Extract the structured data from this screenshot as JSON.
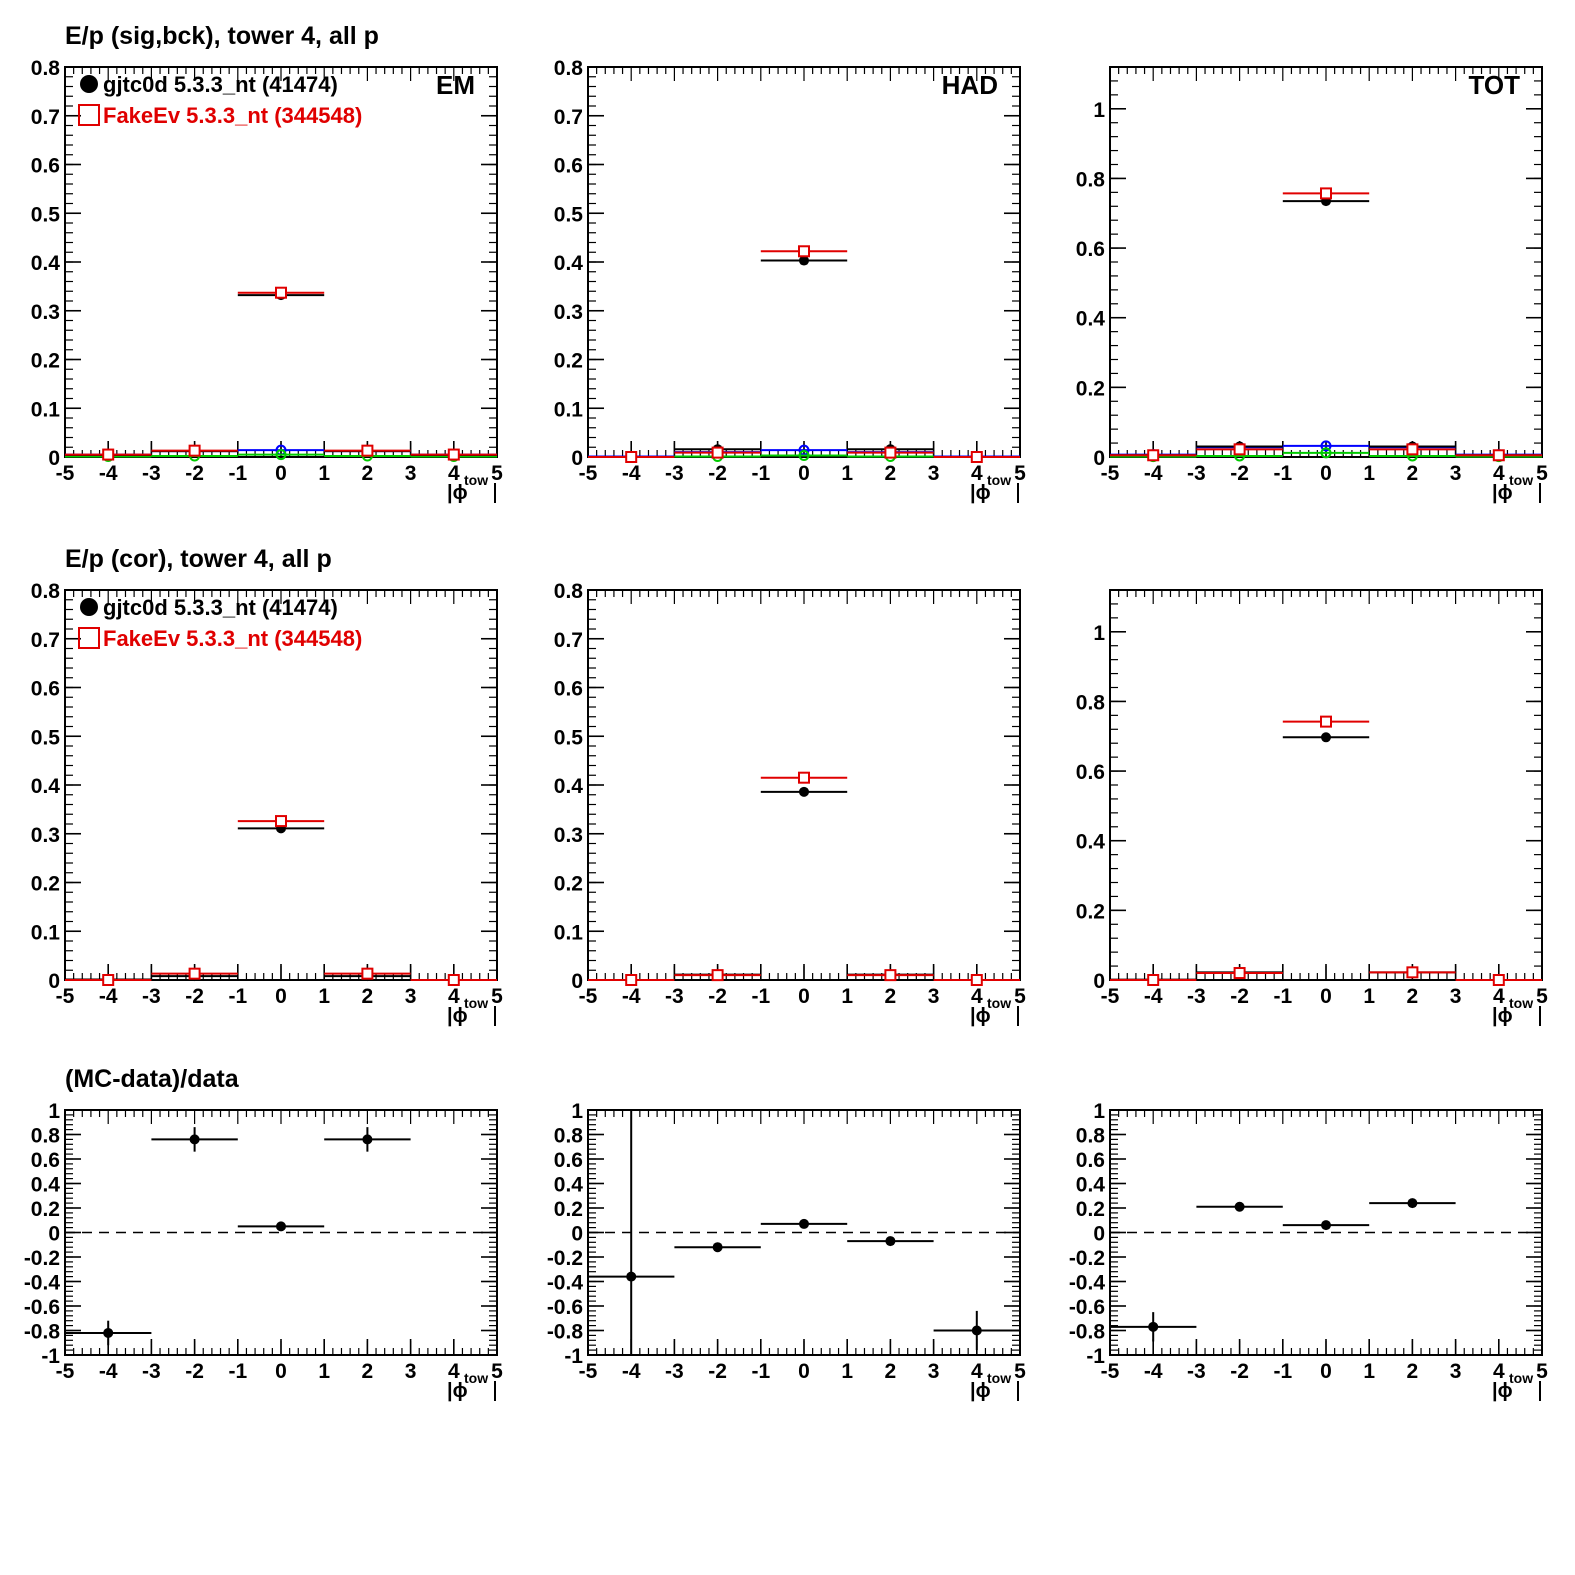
{
  "chart_data": [
    {
      "id": "em-sigbck",
      "type": "scatter",
      "title": "E/p (sig,bck), tower 4, all p",
      "corner_label": "EM",
      "xlabel": "|ϕ",
      "xlabel_sub": "tow",
      "xlim": [
        -5,
        5
      ],
      "ylim": [
        0,
        0.8
      ],
      "xticks": [
        "-5",
        "-4",
        "-3",
        "-2",
        "-1",
        "0",
        "1",
        "2",
        "3",
        "4",
        "5"
      ],
      "yticks": [
        "0",
        "0.1",
        "0.2",
        "0.3",
        "0.4",
        "0.5",
        "0.6",
        "0.7",
        "0.8"
      ],
      "legend": [
        {
          "label": "gjtc0d 5.3.3_nt (41474)",
          "color": "#000000",
          "marker": "filled-circle"
        },
        {
          "label": "FakeEv 5.3.3_nt (344548)",
          "color": "#e00000",
          "marker": "open-square"
        }
      ],
      "series": [
        {
          "color": "#0000ff",
          "marker": "open-circle",
          "points": [
            [
              -4,
              0.005,
              1
            ],
            [
              -2,
              0.012,
              1
            ],
            [
              0,
              0.014,
              1
            ],
            [
              2,
              0.012,
              1
            ],
            [
              4,
              0.005,
              1
            ]
          ]
        },
        {
          "color": "#00cc00",
          "marker": "open-circle",
          "points": [
            [
              -4,
              0.001,
              1
            ],
            [
              -2,
              0.002,
              1
            ],
            [
              0,
              0.005,
              1
            ],
            [
              2,
              0.002,
              1
            ],
            [
              4,
              0.001,
              1
            ]
          ]
        },
        {
          "color": "#000000",
          "marker": "filled-circle",
          "points": [
            [
              -4,
              0.004,
              1
            ],
            [
              -2,
              0.012,
              1
            ],
            [
              0,
              0.332,
              1
            ],
            [
              2,
              0.012,
              1
            ],
            [
              4,
              0.004,
              1
            ]
          ]
        },
        {
          "color": "#e00000",
          "marker": "open-square",
          "points": [
            [
              -4,
              0.005,
              1
            ],
            [
              -2,
              0.013,
              1
            ],
            [
              0,
              0.337,
              1
            ],
            [
              2,
              0.013,
              1
            ],
            [
              4,
              0.005,
              1
            ]
          ]
        }
      ]
    },
    {
      "id": "had-sigbck",
      "type": "scatter",
      "corner_label": "HAD",
      "xlabel": "|ϕ",
      "xlabel_sub": "tow",
      "xlim": [
        -5,
        5
      ],
      "ylim": [
        0,
        0.8
      ],
      "xticks": [
        "-5",
        "-4",
        "-3",
        "-2",
        "-1",
        "0",
        "1",
        "2",
        "3",
        "4",
        "5"
      ],
      "yticks": [
        "0",
        "0.1",
        "0.2",
        "0.3",
        "0.4",
        "0.5",
        "0.6",
        "0.7",
        "0.8"
      ],
      "series": [
        {
          "color": "#0000ff",
          "marker": "open-circle",
          "points": [
            [
              -4,
              0.001,
              1
            ],
            [
              -2,
              0.01,
              1
            ],
            [
              0,
              0.014,
              1
            ],
            [
              2,
              0.01,
              1
            ],
            [
              4,
              0.001,
              1
            ]
          ]
        },
        {
          "color": "#00cc00",
          "marker": "open-circle",
          "points": [
            [
              -4,
              0.0,
              1
            ],
            [
              -2,
              0.001,
              1
            ],
            [
              0,
              0.003,
              1
            ],
            [
              2,
              0.001,
              1
            ],
            [
              4,
              0.0,
              1
            ]
          ]
        },
        {
          "color": "#000000",
          "marker": "filled-circle",
          "points": [
            [
              -4,
              0.0,
              1
            ],
            [
              -2,
              0.016,
              1
            ],
            [
              0,
              0.403,
              1
            ],
            [
              2,
              0.016,
              1
            ],
            [
              4,
              0.0,
              1
            ]
          ]
        },
        {
          "color": "#e00000",
          "marker": "open-square",
          "points": [
            [
              -4,
              0.0,
              1
            ],
            [
              -2,
              0.009,
              1
            ],
            [
              0,
              0.422,
              1
            ],
            [
              2,
              0.009,
              1
            ],
            [
              4,
              0.0,
              1
            ]
          ]
        }
      ]
    },
    {
      "id": "tot-sigbck",
      "type": "scatter",
      "corner_label": "TOT",
      "xlabel": "|ϕ",
      "xlabel_sub": "tow",
      "xlim": [
        -5,
        5
      ],
      "ylim": [
        0,
        1.12
      ],
      "xticks": [
        "-5",
        "-4",
        "-3",
        "-2",
        "-1",
        "0",
        "1",
        "2",
        "3",
        "4",
        "5"
      ],
      "yticks": [
        "0",
        "0.2",
        "0.4",
        "0.6",
        "0.8",
        "1"
      ],
      "series": [
        {
          "color": "#0000ff",
          "marker": "open-circle",
          "points": [
            [
              -4,
              0.007,
              1
            ],
            [
              -2,
              0.028,
              1
            ],
            [
              0,
              0.032,
              1
            ],
            [
              2,
              0.028,
              1
            ],
            [
              4,
              0.007,
              1
            ]
          ]
        },
        {
          "color": "#00cc00",
          "marker": "open-circle",
          "points": [
            [
              -4,
              0.001,
              1
            ],
            [
              -2,
              0.003,
              1
            ],
            [
              0,
              0.012,
              1
            ],
            [
              2,
              0.003,
              1
            ],
            [
              4,
              0.001,
              1
            ]
          ]
        },
        {
          "color": "#000000",
          "marker": "filled-circle",
          "points": [
            [
              -4,
              0.005,
              1
            ],
            [
              -2,
              0.03,
              1
            ],
            [
              0,
              0.735,
              1
            ],
            [
              2,
              0.03,
              1
            ],
            [
              4,
              0.005,
              1
            ]
          ]
        },
        {
          "color": "#e00000",
          "marker": "open-square",
          "points": [
            [
              -4,
              0.005,
              1
            ],
            [
              -2,
              0.022,
              1
            ],
            [
              0,
              0.757,
              1
            ],
            [
              2,
              0.022,
              1
            ],
            [
              4,
              0.005,
              1
            ]
          ]
        }
      ]
    },
    {
      "id": "em-cor",
      "type": "scatter",
      "title": "E/p (cor), tower 4, all p",
      "xlabel": "|ϕ",
      "xlabel_sub": "tow",
      "xlim": [
        -5,
        5
      ],
      "ylim": [
        0,
        0.8
      ],
      "xticks": [
        "-5",
        "-4",
        "-3",
        "-2",
        "-1",
        "0",
        "1",
        "2",
        "3",
        "4",
        "5"
      ],
      "yticks": [
        "0",
        "0.1",
        "0.2",
        "0.3",
        "0.4",
        "0.5",
        "0.6",
        "0.7",
        "0.8"
      ],
      "legend": [
        {
          "label": "gjtc0d 5.3.3_nt (41474)",
          "color": "#000000",
          "marker": "filled-circle"
        },
        {
          "label": "FakeEv 5.3.3_nt (344548)",
          "color": "#e00000",
          "marker": "open-square"
        }
      ],
      "series": [
        {
          "color": "#000000",
          "marker": "filled-circle",
          "points": [
            [
              -4,
              0.001,
              1
            ],
            [
              -2,
              0.008,
              1
            ],
            [
              0,
              0.311,
              1
            ],
            [
              2,
              0.008,
              1
            ],
            [
              4,
              0.0,
              1
            ]
          ]
        },
        {
          "color": "#e00000",
          "marker": "open-square",
          "points": [
            [
              -4,
              0.0,
              1
            ],
            [
              -2,
              0.013,
              1
            ],
            [
              0,
              0.326,
              1
            ],
            [
              2,
              0.013,
              1
            ],
            [
              4,
              0.0,
              1
            ]
          ]
        }
      ]
    },
    {
      "id": "had-cor",
      "type": "scatter",
      "xlabel": "|ϕ",
      "xlabel_sub": "tow",
      "xlim": [
        -5,
        5
      ],
      "ylim": [
        0,
        0.8
      ],
      "xticks": [
        "-5",
        "-4",
        "-3",
        "-2",
        "-1",
        "0",
        "1",
        "2",
        "3",
        "4",
        "5"
      ],
      "yticks": [
        "0",
        "0.1",
        "0.2",
        "0.3",
        "0.4",
        "0.5",
        "0.6",
        "0.7",
        "0.8"
      ],
      "series": [
        {
          "color": "#000000",
          "marker": "filled-circle",
          "points": [
            [
              -4,
              0.0,
              1
            ],
            [
              -2,
              0.011,
              1
            ],
            [
              0,
              0.386,
              1
            ],
            [
              2,
              0.011,
              1
            ],
            [
              4,
              0.0,
              1
            ]
          ]
        },
        {
          "color": "#e00000",
          "marker": "open-square",
          "points": [
            [
              -4,
              0.0,
              1
            ],
            [
              -2,
              0.01,
              1
            ],
            [
              0,
              0.415,
              1
            ],
            [
              2,
              0.01,
              1
            ],
            [
              4,
              0.0,
              1
            ]
          ]
        }
      ]
    },
    {
      "id": "tot-cor",
      "type": "scatter",
      "xlabel": "|ϕ",
      "xlabel_sub": "tow",
      "xlim": [
        -5,
        5
      ],
      "ylim": [
        0,
        1.12
      ],
      "xticks": [
        "-5",
        "-4",
        "-3",
        "-2",
        "-1",
        "0",
        "1",
        "2",
        "3",
        "4",
        "5"
      ],
      "yticks": [
        "0",
        "0.2",
        "0.4",
        "0.6",
        "0.8",
        "1"
      ],
      "series": [
        {
          "color": "#000000",
          "marker": "filled-circle",
          "points": [
            [
              -4,
              0.001,
              1
            ],
            [
              -2,
              0.022,
              1
            ],
            [
              0,
              0.697,
              1
            ],
            [
              2,
              0.022,
              1
            ],
            [
              4,
              0.0,
              1
            ]
          ]
        },
        {
          "color": "#e00000",
          "marker": "open-square",
          "points": [
            [
              -4,
              0.0,
              1
            ],
            [
              -2,
              0.02,
              1
            ],
            [
              0,
              0.742,
              1
            ],
            [
              2,
              0.022,
              1
            ],
            [
              4,
              0.0,
              1
            ]
          ]
        }
      ]
    },
    {
      "id": "em-ratio",
      "type": "scatter",
      "title": "(MC-data)/data",
      "xlabel": "|ϕ",
      "xlabel_sub": "tow",
      "xlim": [
        -5,
        5
      ],
      "ylim": [
        -1,
        1
      ],
      "xticks": [
        "-5",
        "-4",
        "-3",
        "-2",
        "-1",
        "0",
        "1",
        "2",
        "3",
        "4",
        "5"
      ],
      "yticks": [
        "-1",
        "-0.8",
        "-0.6",
        "-0.4",
        "-0.2",
        "0",
        "0.2",
        "0.4",
        "0.6",
        "0.8",
        "1"
      ],
      "reference_line": 0,
      "series": [
        {
          "color": "#000000",
          "marker": "filled-circle",
          "points": [
            [
              -4,
              -0.82,
              1,
              0.1
            ],
            [
              -2,
              0.76,
              1,
              0.1
            ],
            [
              0,
              0.05,
              1,
              0.0
            ],
            [
              2,
              0.76,
              1,
              0.1
            ]
          ]
        }
      ]
    },
    {
      "id": "had-ratio",
      "type": "scatter",
      "xlabel": "|ϕ",
      "xlabel_sub": "tow",
      "xlim": [
        -5,
        5
      ],
      "ylim": [
        -1,
        1
      ],
      "xticks": [
        "-5",
        "-4",
        "-3",
        "-2",
        "-1",
        "0",
        "1",
        "2",
        "3",
        "4",
        "5"
      ],
      "yticks": [
        "-1",
        "-0.8",
        "-0.6",
        "-0.4",
        "-0.2",
        "0",
        "0.2",
        "0.4",
        "0.6",
        "0.8",
        "1"
      ],
      "reference_line": 0,
      "series": [
        {
          "color": "#000000",
          "marker": "filled-circle",
          "points": [
            [
              -4,
              -0.36,
              1,
              1.4
            ],
            [
              -2,
              -0.12,
              1,
              0.0
            ],
            [
              0,
              0.07,
              1,
              0.0
            ],
            [
              2,
              -0.07,
              1,
              0.0
            ],
            [
              4,
              -0.8,
              1,
              0.16
            ]
          ]
        }
      ]
    },
    {
      "id": "tot-ratio",
      "type": "scatter",
      "xlabel": "|ϕ",
      "xlabel_sub": "tow",
      "xlim": [
        -5,
        5
      ],
      "ylim": [
        -1,
        1
      ],
      "xticks": [
        "-5",
        "-4",
        "-3",
        "-2",
        "-1",
        "0",
        "1",
        "2",
        "3",
        "4",
        "5"
      ],
      "yticks": [
        "-1",
        "-0.8",
        "-0.6",
        "-0.4",
        "-0.2",
        "0",
        "0.2",
        "0.4",
        "0.6",
        "0.8",
        "1"
      ],
      "reference_line": 0,
      "series": [
        {
          "color": "#000000",
          "marker": "filled-circle",
          "points": [
            [
              -4,
              -0.77,
              1,
              0.12
            ],
            [
              -2,
              0.21,
              1,
              0.0
            ],
            [
              0,
              0.06,
              1,
              0.0
            ],
            [
              2,
              0.24,
              1,
              0.0
            ]
          ]
        }
      ]
    }
  ]
}
